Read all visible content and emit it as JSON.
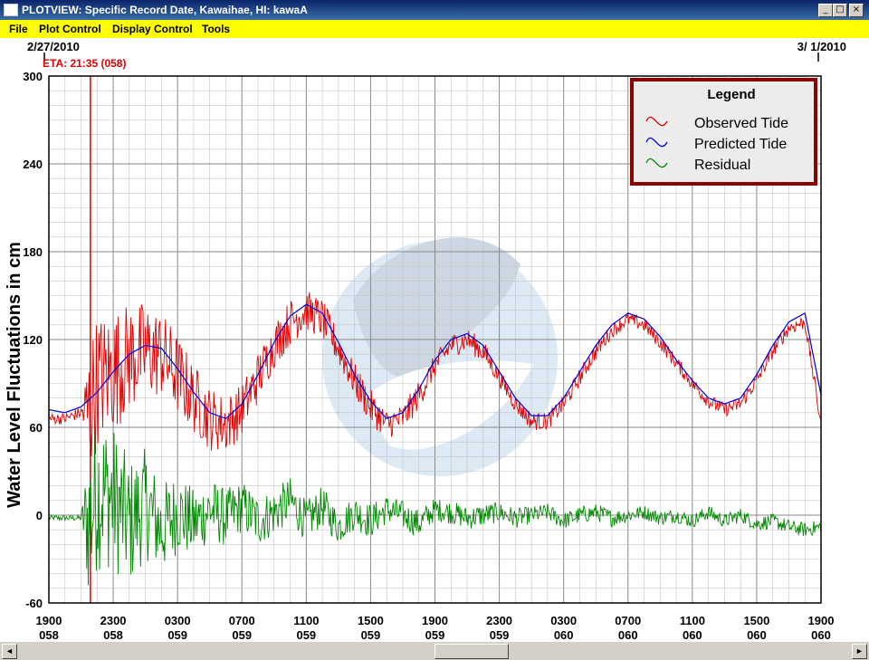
{
  "window": {
    "title": "PLOTVIEW: Specific Record Date, Kawaihae, HI: kawaA",
    "controls": [
      "_",
      "□",
      "×"
    ]
  },
  "menu": {
    "items": [
      "File",
      "Plot Control",
      "Display Control",
      "Tools"
    ]
  },
  "header": {
    "start_date": "2/27/2010",
    "end_date": "3/ 1/2010",
    "eta": "ETA: 21:35 (058)"
  },
  "colors": {
    "observed": "#e00000",
    "predicted": "#0000e0",
    "residual": "#008800",
    "eta_line": "#e00000",
    "legend_border": "#8b0000",
    "menu_bg": "#ffff00"
  },
  "scrollbar": {
    "left_arrow": "◄",
    "right_arrow": "►"
  },
  "chart_data": {
    "type": "line",
    "ylabel": "Water Level Fluctuations in cm",
    "ylim": [
      -60,
      300
    ],
    "yticks": [
      -60,
      0,
      60,
      120,
      180,
      240,
      300
    ],
    "xlim": [
      0,
      48
    ],
    "xtick_hours": [
      0,
      4,
      8,
      12,
      16,
      20,
      24,
      28,
      32,
      36,
      40,
      44,
      48
    ],
    "xtick_labels": [
      [
        "1900",
        "058"
      ],
      [
        "2300",
        "058"
      ],
      [
        "0300",
        "059"
      ],
      [
        "0700",
        "059"
      ],
      [
        "1100",
        "059"
      ],
      [
        "1500",
        "059"
      ],
      [
        "1900",
        "059"
      ],
      [
        "2300",
        "059"
      ],
      [
        "0300",
        "060"
      ],
      [
        "0700",
        "060"
      ],
      [
        "1100",
        "060"
      ],
      [
        "1500",
        "060"
      ],
      [
        "1900",
        "060"
      ]
    ],
    "eta_hour": 2.58,
    "legend": {
      "title": "Legend",
      "placement": "top-right",
      "entries": [
        "Observed Tide",
        "Predicted Tide",
        "Residual"
      ]
    },
    "x_unit": "hours since 1900 day 058",
    "series": [
      {
        "name": "Predicted Tide",
        "x": [
          0,
          1,
          2,
          3,
          4,
          5,
          6,
          7,
          8,
          9,
          10,
          11,
          12,
          13,
          14,
          15,
          16,
          17,
          18,
          19,
          20,
          21,
          22,
          23,
          24,
          25,
          26,
          27,
          28,
          29,
          30,
          31,
          32,
          33,
          34,
          35,
          36,
          37,
          38,
          39,
          40,
          41,
          42,
          43,
          44,
          45,
          46,
          47,
          48
        ],
        "values": [
          72,
          70,
          74,
          84,
          98,
          110,
          116,
          114,
          100,
          84,
          70,
          66,
          76,
          96,
          118,
          136,
          144,
          138,
          118,
          96,
          78,
          66,
          70,
          86,
          106,
          120,
          124,
          116,
          98,
          80,
          68,
          68,
          80,
          98,
          116,
          130,
          138,
          134,
          122,
          106,
          92,
          80,
          76,
          80,
          96,
          116,
          132,
          138,
          82
        ]
      },
      {
        "name": "Observed Tide",
        "x": [
          0,
          1,
          2,
          2.5,
          3,
          4,
          5,
          6,
          7,
          8,
          9,
          10,
          11,
          12,
          13,
          14,
          15,
          16,
          17,
          18,
          19,
          20,
          21,
          22,
          23,
          24,
          25,
          26,
          27,
          28,
          29,
          30,
          31,
          32,
          33,
          34,
          35,
          36,
          37,
          38,
          39,
          40,
          41,
          42,
          43,
          44,
          45,
          46,
          47,
          48
        ],
        "values": [
          66,
          66,
          70,
          71,
          92,
          98,
          108,
          112,
          110,
          96,
          80,
          66,
          62,
          72,
          94,
          116,
          132,
          140,
          134,
          114,
          92,
          74,
          62,
          66,
          82,
          102,
          116,
          120,
          112,
          94,
          76,
          64,
          64,
          76,
          94,
          112,
          126,
          134,
          130,
          118,
          104,
          90,
          78,
          72,
          76,
          92,
          112,
          128,
          132,
          62
        ]
      },
      {
        "name": "Residual",
        "x": [
          0,
          1,
          2,
          2.5,
          3,
          4,
          5,
          6,
          7,
          8,
          9,
          10,
          11,
          12,
          13,
          14,
          15,
          16,
          17,
          18,
          19,
          20,
          21,
          22,
          23,
          24,
          25,
          26,
          27,
          28,
          29,
          30,
          31,
          32,
          33,
          34,
          35,
          36,
          37,
          38,
          39,
          40,
          41,
          42,
          43,
          44,
          45,
          46,
          47,
          48
        ],
        "values": [
          -2,
          -2,
          -2,
          -4,
          18,
          12,
          -6,
          8,
          -10,
          2,
          -6,
          4,
          -2,
          6,
          -4,
          2,
          10,
          -4,
          6,
          -8,
          2,
          -4,
          4,
          0,
          -6,
          4,
          2,
          -2,
          0,
          2,
          -2,
          0,
          2,
          -4,
          0,
          2,
          -2,
          0,
          2,
          -2,
          0,
          -4,
          2,
          -4,
          0,
          -6,
          -4,
          -8,
          -10,
          -8
        ]
      }
    ],
    "noise_amplitude_observed": [
      4,
      4,
      4,
      48,
      46,
      42,
      38,
      34,
      30,
      28,
      24,
      22,
      20,
      18,
      18,
      16,
      16,
      14,
      14,
      12,
      12,
      12,
      10,
      10,
      10,
      8,
      8,
      8,
      8,
      6,
      6,
      6,
      6,
      6,
      6,
      6,
      5,
      5,
      5,
      5,
      5,
      5,
      5,
      5,
      5,
      5,
      5,
      5,
      5,
      5
    ],
    "noise_amplitude_residual": [
      2,
      2,
      2,
      60,
      56,
      50,
      44,
      38,
      32,
      28,
      24,
      22,
      20,
      18,
      18,
      16,
      16,
      14,
      14,
      12,
      12,
      12,
      10,
      10,
      10,
      8,
      8,
      8,
      8,
      7,
      7,
      6,
      6,
      6,
      6,
      6,
      6,
      5,
      5,
      5,
      5,
      5,
      5,
      5,
      5,
      5,
      5,
      5,
      5,
      5
    ]
  }
}
